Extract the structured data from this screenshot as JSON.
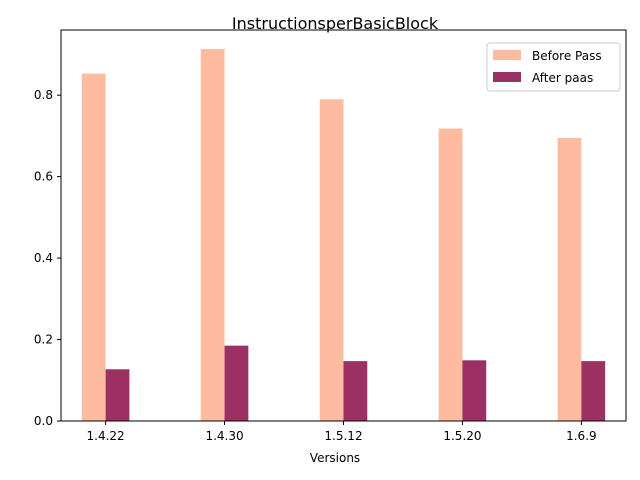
{
  "chart_data": {
    "type": "bar",
    "title": "InstructionsperBasicBlock",
    "xlabel": "Versions",
    "ylabel": "",
    "categories": [
      "1.4.22",
      "1.4.30",
      "1.5.12",
      "1.5.20",
      "1.6.9"
    ],
    "series": [
      {
        "name": "Before Pass",
        "color": "#FFBBA0",
        "values": [
          0.853,
          0.913,
          0.79,
          0.718,
          0.695
        ]
      },
      {
        "name": "After paas",
        "color": "#9B3062",
        "values": [
          0.127,
          0.185,
          0.147,
          0.149,
          0.147
        ]
      }
    ],
    "ylim": [
      0,
      0.96
    ],
    "yticks": [
      0.0,
      0.2,
      0.4,
      0.6,
      0.8
    ],
    "ytick_labels": [
      "0.0",
      "0.2",
      "0.4",
      "0.6",
      "0.8"
    ],
    "grid": false,
    "legend_position": "top-right"
  }
}
